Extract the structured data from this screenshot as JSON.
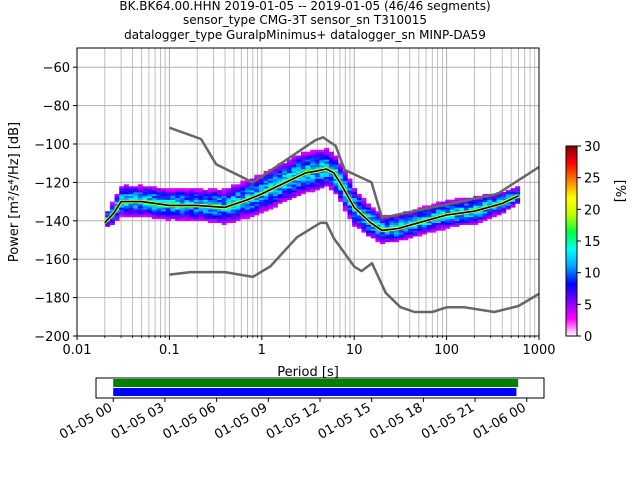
{
  "header": {
    "title_lines": [
      "BK.BK64.00.HHN   2019-01-05 -- 2019-01-05  (46/46 segments)",
      "sensor_type CMG-3T sensor_sn T310015",
      "datalogger_type GuralpMinimus+ datalogger_sn MINP-DA59"
    ]
  },
  "chart_data": [
    {
      "type": "heatmap",
      "title": "BK.BK64.00.HHN   2019-01-05 -- 2019-01-05  (46/46 segments)",
      "xlabel": "Period [s]",
      "ylabel": "Power [m²/s⁴/Hz] [dB]",
      "xscale": "log",
      "xlim": [
        0.01,
        1000
      ],
      "ylim": [
        -200,
        -50
      ],
      "x_ticks": [
        0.01,
        0.1,
        1,
        10,
        100,
        1000
      ],
      "x_tick_labels": [
        "0.01",
        "0.1",
        "1",
        "10",
        "100",
        "1000"
      ],
      "y_ticks": [
        -200,
        -180,
        -160,
        -140,
        -120,
        -100,
        -80,
        -60
      ],
      "y_tick_labels": [
        "−200",
        "−180",
        "−160",
        "−140",
        "−120",
        "−100",
        "−80",
        "−60"
      ],
      "grid": true,
      "colorbar": {
        "label": "[%]",
        "range": [
          0,
          30
        ],
        "ticks": [
          0,
          5,
          10,
          15,
          20,
          25,
          30
        ],
        "tick_labels": [
          "0",
          "5",
          "10",
          "15",
          "20",
          "25",
          "30"
        ],
        "colors": [
          "#ffffff",
          "#ff00ff",
          "#8000ff",
          "#0000ff",
          "#00a0ff",
          "#00ffff",
          "#00ff40",
          "#c0ff00",
          "#ffff00",
          "#ff8000",
          "#ff0000",
          "#800000"
        ]
      },
      "series": [
        {
          "role": "median",
          "color": "#000000",
          "x": [
            0.02,
            0.025,
            0.03,
            0.05,
            0.1,
            0.2,
            0.4,
            0.7,
            1,
            2,
            3,
            4,
            5,
            6,
            7,
            10,
            15,
            20,
            30,
            50,
            100,
            200,
            400,
            600
          ],
          "y": [
            -141,
            -136,
            -130,
            -130,
            -132,
            -132,
            -133,
            -129,
            -126,
            -119,
            -115,
            -114,
            -113,
            -115,
            -120,
            -133,
            -141,
            -145,
            -144,
            -141,
            -137,
            -135,
            -131,
            -127
          ]
        },
        {
          "role": "nhnm",
          "color": "#666666",
          "x": [
            0.1,
            0.22,
            0.32,
            0.8,
            3.8,
            4.6,
            6.3,
            7.9,
            15.4,
            20,
            354.8,
            1000
          ],
          "y": [
            -91.5,
            -97.4,
            -110.5,
            -120,
            -98,
            -96.5,
            -101,
            -113.5,
            -120,
            -138.5,
            -126,
            -112
          ]
        },
        {
          "role": "nlnm",
          "color": "#666666",
          "x": [
            0.1,
            0.17,
            0.4,
            0.8,
            1.24,
            2.4,
            4.3,
            5,
            6,
            10,
            12,
            15.6,
            21.9,
            31.6,
            45,
            70,
            101,
            154,
            328,
            600,
            1000
          ],
          "y": [
            -168,
            -166.7,
            -166.7,
            -169.2,
            -163.7,
            -148.6,
            -141.1,
            -141.1,
            -149,
            -163.8,
            -166.2,
            -162.1,
            -177.5,
            -185,
            -187.5,
            -187.5,
            -185,
            -185,
            -187.5,
            -184.4,
            -178
          ]
        }
      ]
    },
    {
      "type": "bar",
      "description": "data coverage",
      "x_ticks": [
        "01-05 00",
        "01-05 03",
        "01-05 06",
        "01-05 09",
        "01-05 12",
        "01-05 15",
        "01-05 18",
        "01-05 21",
        "01-06 00"
      ],
      "range_hours": [
        -1,
        25
      ],
      "series": [
        {
          "name": "",
          "color": "#008000",
          "start_hour": 0,
          "end_hour": 23.5
        },
        {
          "name": "",
          "color": "#0000ff",
          "start_hour": 0,
          "end_hour": 23.4
        }
      ]
    }
  ]
}
